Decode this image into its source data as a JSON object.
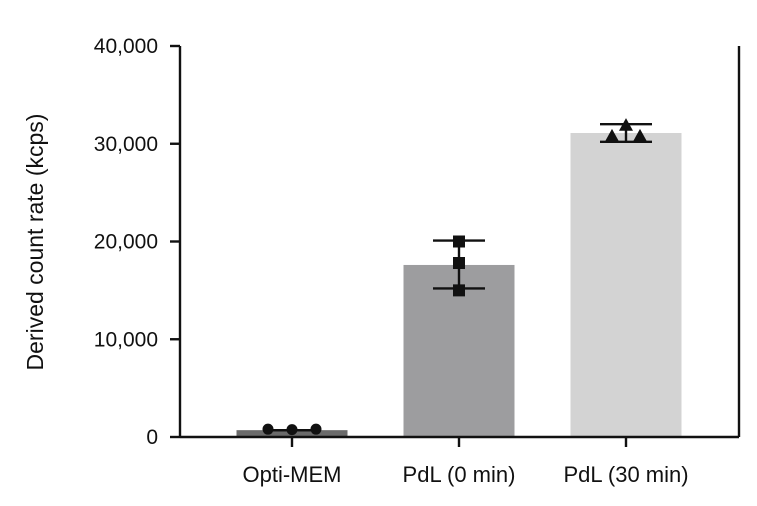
{
  "chart_data": {
    "type": "bar",
    "ylabel": "Derived count rate (kcps)",
    "xlabel": "",
    "ylim": [
      0,
      40000
    ],
    "yticks": [
      0,
      10000,
      20000,
      30000,
      40000
    ],
    "ytick_labels": [
      "0",
      "10,000",
      "20,000",
      "30,000",
      "40,000"
    ],
    "categories": [
      "Opti-MEM",
      "PdL (0 min)",
      "PdL (30 min)"
    ],
    "values": [
      700,
      17600,
      31100
    ],
    "error_low": [
      700,
      15200,
      30200
    ],
    "error_high": [
      700,
      20100,
      32000
    ],
    "points": [
      [
        800,
        750,
        800
      ],
      [
        20000,
        17800,
        15000
      ],
      [
        30800,
        31900,
        30800
      ]
    ],
    "marker_shapes": [
      "circle",
      "square",
      "triangle"
    ],
    "colors": [
      "#6b6b6b",
      "#9d9d9f",
      "#d3d3d3"
    ],
    "grid": false
  }
}
